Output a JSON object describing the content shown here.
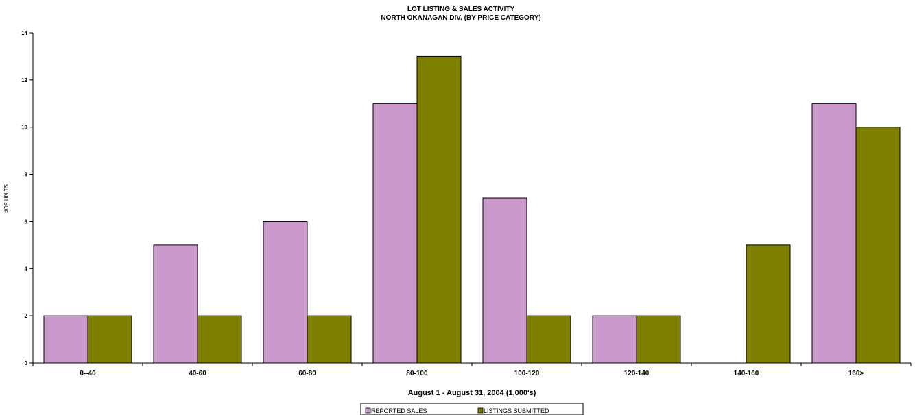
{
  "chart_data": {
    "type": "bar",
    "title": "LOT LISTING & SALES ACTIVITY",
    "subtitle": "NORTH OKANAGAN DIV. (BY PRICE CATEGORY)",
    "xlabel": "August 1 - August 31, 2004 (1,000's)",
    "ylabel": "#OF UNITS",
    "ylim": [
      0,
      14
    ],
    "yticks": [
      "0",
      "2",
      "4",
      "6",
      "8",
      "10",
      "12",
      "14"
    ],
    "categories": [
      "0--40",
      "40-60",
      "60-80",
      "80-100",
      "100-120",
      "120-140",
      "140-160",
      "160>"
    ],
    "series": [
      {
        "name": "REPORTED SALES",
        "color": "#cc99cc",
        "values": [
          2,
          5,
          6,
          11,
          7,
          2,
          0,
          11
        ]
      },
      {
        "name": "LISTINGS SUBMITTED",
        "color": "#808000",
        "values": [
          2,
          2,
          2,
          13,
          2,
          2,
          5,
          10
        ]
      }
    ],
    "grid": false,
    "legend_position": "bottom-center"
  }
}
